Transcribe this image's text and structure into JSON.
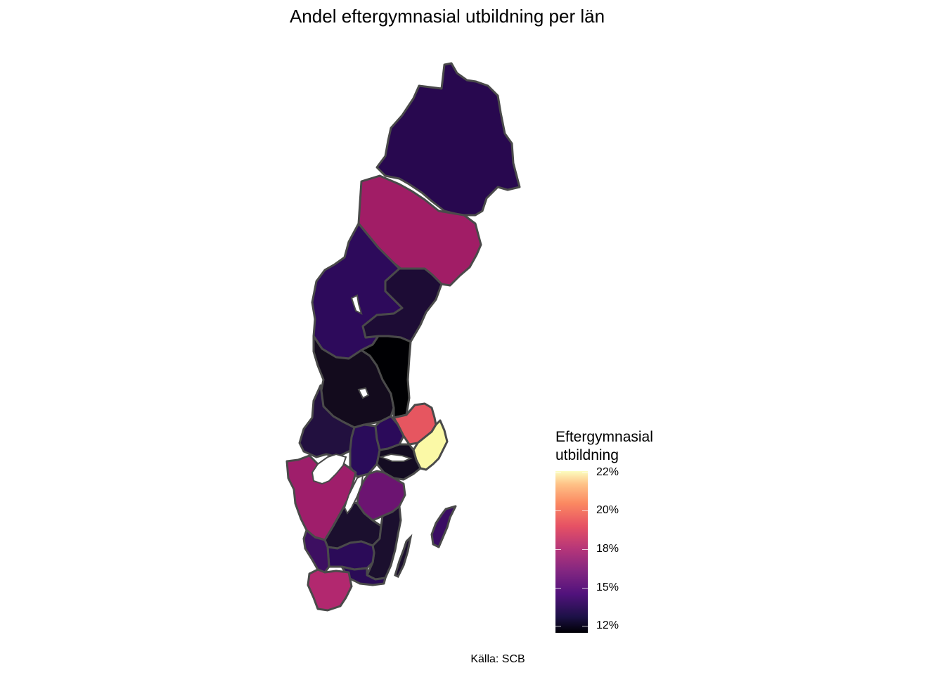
{
  "title": "Andel eftergymnasial utbildning per län",
  "caption": "Källa: SCB",
  "legend": {
    "title_line1": "Eftergymnasial",
    "title_line2": "utbildning",
    "ticks": [
      "22%",
      "20%",
      "18%",
      "15%",
      "12%"
    ],
    "scale": "magma",
    "range_pct": [
      11.6,
      22.0
    ]
  },
  "map": {
    "regions": [
      {
        "name": "Norrbotten",
        "color": "#28084f"
      },
      {
        "name": "Västerbotten",
        "color": "#a11d66"
      },
      {
        "name": "Jämtland",
        "color": "#2d0a5b"
      },
      {
        "name": "Västernorrland",
        "color": "#1d0c35"
      },
      {
        "name": "Dalarna",
        "color": "#130b1d"
      },
      {
        "name": "Gävleborg",
        "color": "#000003"
      },
      {
        "name": "Värmland",
        "color": "#22103f"
      },
      {
        "name": "Örebro",
        "color": "#2a0c5a"
      },
      {
        "name": "Västmanland",
        "color": "#2b0a5a"
      },
      {
        "name": "Uppsala",
        "color": "#e65660"
      },
      {
        "name": "Stockholm",
        "color": "#fbf9a6"
      },
      {
        "name": "Södermanland",
        "color": "#140c22"
      },
      {
        "name": "Västra Götaland",
        "color": "#9f1e6b"
      },
      {
        "name": "Östergötland",
        "color": "#6c1471"
      },
      {
        "name": "Jönköping",
        "color": "#1b0f2e"
      },
      {
        "name": "Kalmar",
        "color": "#1b0f2e"
      },
      {
        "name": "Kronoberg",
        "color": "#2b0b58"
      },
      {
        "name": "Halland",
        "color": "#3d0f61"
      },
      {
        "name": "Blekinge",
        "color": "#2a0b56"
      },
      {
        "name": "Skåne",
        "color": "#b2286f"
      },
      {
        "name": "Gotland",
        "color": "#3a0d63"
      }
    ]
  }
}
